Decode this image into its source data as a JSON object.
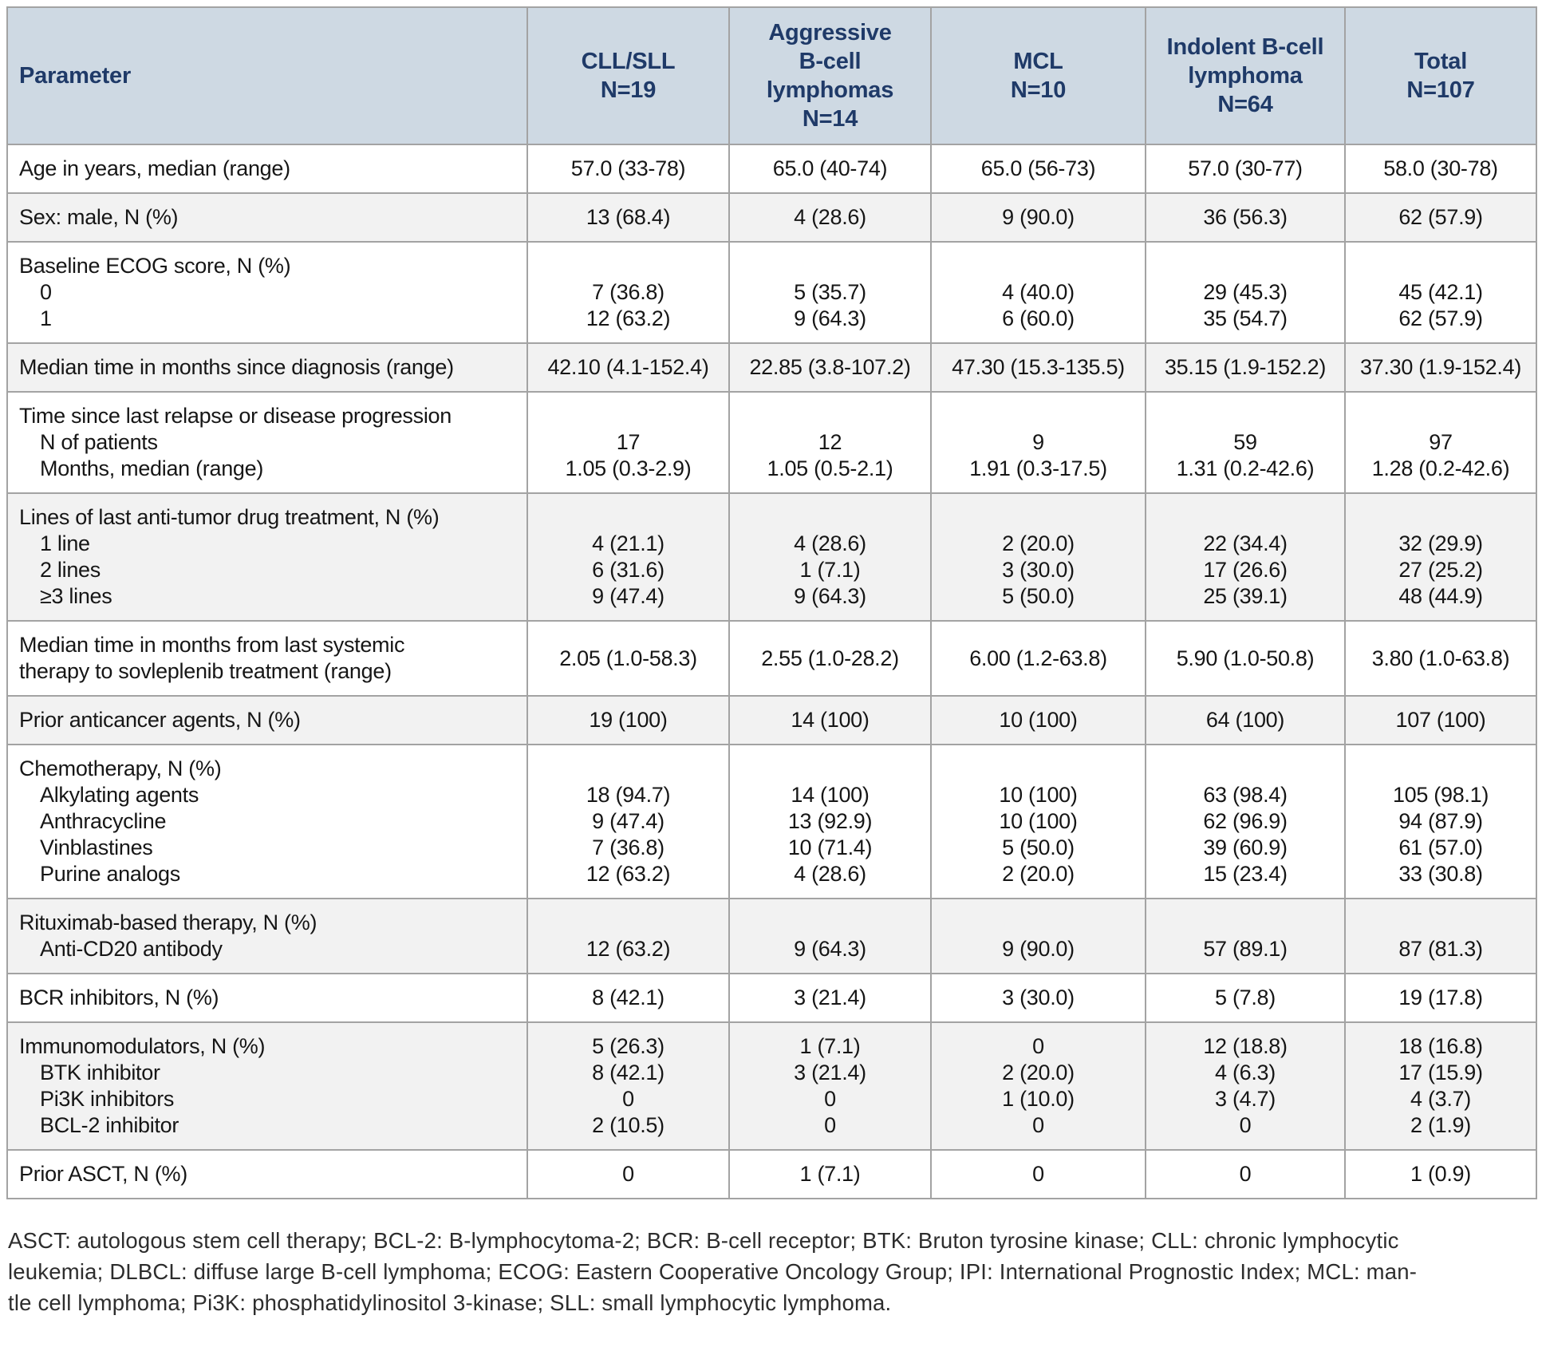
{
  "colors": {
    "header_bg": "#ced9e3",
    "header_text": "#1f3a68",
    "row_alt_bg": "#f2f2f2",
    "border": "#a3a3a3",
    "body_text": "#161616"
  },
  "table": {
    "header": [
      {
        "lines": [
          "Parameter"
        ],
        "align": "left"
      },
      {
        "lines": [
          "CLL/SLL",
          "N=19"
        ],
        "align": "center"
      },
      {
        "lines": [
          "Aggressive",
          "B-cell",
          "lymphomas",
          "N=14"
        ],
        "align": "center"
      },
      {
        "lines": [
          "MCL",
          "N=10"
        ],
        "align": "center"
      },
      {
        "lines": [
          "Indolent B-cell",
          "lymphoma",
          "N=64"
        ],
        "align": "center"
      },
      {
        "lines": [
          "Total",
          "N=107"
        ],
        "align": "center"
      }
    ],
    "rows": [
      {
        "param": [
          {
            "text": "Age in years, median (range)",
            "indent": false
          }
        ],
        "cells": [
          [
            "57.0 (33-78)"
          ],
          [
            "65.0 (40-74)"
          ],
          [
            "65.0 (56-73)"
          ],
          [
            "57.0 (30-77)"
          ],
          [
            "58.0 (30-78)"
          ]
        ]
      },
      {
        "param": [
          {
            "text": "Sex: male, N (%)",
            "indent": false
          }
        ],
        "cells": [
          [
            "13 (68.4)"
          ],
          [
            "4 (28.6)"
          ],
          [
            "9 (90.0)"
          ],
          [
            "36 (56.3)"
          ],
          [
            "62 (57.9)"
          ]
        ]
      },
      {
        "param": [
          {
            "text": "Baseline ECOG score, N (%)",
            "indent": false
          },
          {
            "text": "0",
            "indent": true
          },
          {
            "text": "1",
            "indent": true
          }
        ],
        "cells": [
          [
            "",
            "7 (36.8)",
            "12 (63.2)"
          ],
          [
            "",
            "5 (35.7)",
            "9 (64.3)"
          ],
          [
            "",
            "4 (40.0)",
            "6 (60.0)"
          ],
          [
            "",
            "29 (45.3)",
            "35 (54.7)"
          ],
          [
            "",
            "45 (42.1)",
            "62 (57.9)"
          ]
        ]
      },
      {
        "param": [
          {
            "text": "Median time in months since diagnosis (range)",
            "indent": false
          }
        ],
        "cells": [
          [
            "42.10 (4.1-152.4)"
          ],
          [
            "22.85 (3.8-107.2)"
          ],
          [
            "47.30 (15.3-135.5)"
          ],
          [
            "35.15 (1.9-152.2)"
          ],
          [
            "37.30 (1.9-152.4)"
          ]
        ]
      },
      {
        "param": [
          {
            "text": "Time since last relapse or disease progression",
            "indent": false
          },
          {
            "text": "N of patients",
            "indent": true
          },
          {
            "text": "Months, median (range)",
            "indent": true
          }
        ],
        "cells": [
          [
            "",
            "17",
            "1.05 (0.3-2.9)"
          ],
          [
            "",
            "12",
            "1.05 (0.5-2.1)"
          ],
          [
            "",
            "9",
            "1.91 (0.3-17.5)"
          ],
          [
            "",
            "59",
            "1.31 (0.2-42.6)"
          ],
          [
            "",
            "97",
            "1.28 (0.2-42.6)"
          ]
        ]
      },
      {
        "param": [
          {
            "text": "Lines of last anti-tumor drug treatment, N (%)",
            "indent": false
          },
          {
            "text": "1 line",
            "indent": true
          },
          {
            "text": "2 lines",
            "indent": true
          },
          {
            "text": "≥3 lines",
            "indent": true
          }
        ],
        "cells": [
          [
            "",
            "4 (21.1)",
            "6 (31.6)",
            "9 (47.4)"
          ],
          [
            "",
            "4 (28.6)",
            "1 (7.1)",
            "9 (64.3)"
          ],
          [
            "",
            "2 (20.0)",
            "3 (30.0)",
            "5 (50.0)"
          ],
          [
            "",
            "22 (34.4)",
            "17 (26.6)",
            "25 (39.1)"
          ],
          [
            "",
            "32 (29.9)",
            "27 (25.2)",
            "48 (44.9)"
          ]
        ]
      },
      {
        "param": [
          {
            "text": "Median time in months from last systemic",
            "indent": false
          },
          {
            "text": "therapy to sovleplenib treatment (range)",
            "indent": false
          }
        ],
        "cells": [
          [
            "2.05 (1.0-58.3)"
          ],
          [
            "2.55 (1.0-28.2)"
          ],
          [
            "6.00 (1.2-63.8)"
          ],
          [
            "5.90 (1.0-50.8)"
          ],
          [
            "3.80 (1.0-63.8)"
          ]
        ]
      },
      {
        "param": [
          {
            "text": "Prior anticancer agents, N (%)",
            "indent": false
          }
        ],
        "cells": [
          [
            "19 (100)"
          ],
          [
            "14 (100)"
          ],
          [
            "10 (100)"
          ],
          [
            "64 (100)"
          ],
          [
            "107 (100)"
          ]
        ]
      },
      {
        "param": [
          {
            "text": "Chemotherapy, N (%)",
            "indent": false
          },
          {
            "text": "Alkylating agents",
            "indent": true
          },
          {
            "text": "Anthracycline",
            "indent": true
          },
          {
            "text": "Vinblastines",
            "indent": true
          },
          {
            "text": "Purine analogs",
            "indent": true
          }
        ],
        "cells": [
          [
            "",
            "18 (94.7)",
            "9 (47.4)",
            "7 (36.8)",
            "12 (63.2)"
          ],
          [
            "",
            "14 (100)",
            "13 (92.9)",
            "10 (71.4)",
            "4 (28.6)"
          ],
          [
            "",
            "10 (100)",
            "10 (100)",
            "5 (50.0)",
            "2 (20.0)"
          ],
          [
            "",
            "63 (98.4)",
            "62 (96.9)",
            "39 (60.9)",
            "15 (23.4)"
          ],
          [
            "",
            "105 (98.1)",
            "94 (87.9)",
            "61 (57.0)",
            "33 (30.8)"
          ]
        ]
      },
      {
        "param": [
          {
            "text": "Rituximab-based therapy, N (%)",
            "indent": false
          },
          {
            "text": "Anti-CD20 antibody",
            "indent": true
          }
        ],
        "cells": [
          [
            "",
            "12 (63.2)"
          ],
          [
            "",
            "9 (64.3)"
          ],
          [
            "",
            "9 (90.0)"
          ],
          [
            "",
            "57 (89.1)"
          ],
          [
            "",
            "87 (81.3)"
          ]
        ]
      },
      {
        "param": [
          {
            "text": "BCR inhibitors, N (%)",
            "indent": false
          }
        ],
        "cells": [
          [
            "8 (42.1)"
          ],
          [
            "3 (21.4)"
          ],
          [
            "3 (30.0)"
          ],
          [
            "5 (7.8)"
          ],
          [
            "19 (17.8)"
          ]
        ]
      },
      {
        "param": [
          {
            "text": "Immunomodulators, N (%)",
            "indent": false
          },
          {
            "text": "BTK inhibitor",
            "indent": true
          },
          {
            "text": "Pi3K inhibitors",
            "indent": true
          },
          {
            "text": "BCL-2 inhibitor",
            "indent": true
          }
        ],
        "cells": [
          [
            "5 (26.3)",
            "8 (42.1)",
            "0",
            "2 (10.5)"
          ],
          [
            "1 (7.1)",
            "3 (21.4)",
            "0",
            "0"
          ],
          [
            "0",
            "2 (20.0)",
            "1 (10.0)",
            "0"
          ],
          [
            "12 (18.8)",
            "4 (6.3)",
            "3 (4.7)",
            "0"
          ],
          [
            "18 (16.8)",
            "17 (15.9)",
            "4 (3.7)",
            "2 (1.9)"
          ]
        ]
      },
      {
        "param": [
          {
            "text": "Prior ASCT, N (%)",
            "indent": false
          }
        ],
        "cells": [
          [
            "0"
          ],
          [
            "1 (7.1)"
          ],
          [
            "0"
          ],
          [
            "0"
          ],
          [
            "1 (0.9)"
          ]
        ]
      }
    ]
  },
  "footnote_lines": [
    "ASCT: autologous stem cell therapy; BCL-2: B-lymphocytoma-2; BCR: B-cell receptor; BTK: Bruton tyrosine kinase; CLL: chronic lymphocytic",
    "leukemia; DLBCL: diffuse large B-cell lymphoma; ECOG: Eastern Cooperative Oncology Group; IPI: International Prognostic Index; MCL: man-",
    "tle cell lymphoma; Pi3K: phosphatidylinositol 3-kinase; SLL: small lymphocytic lymphoma."
  ]
}
